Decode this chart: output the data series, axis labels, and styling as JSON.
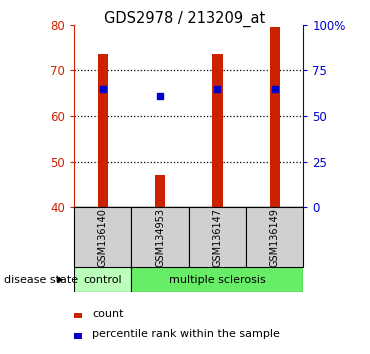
{
  "title": "GDS2978 / 213209_at",
  "samples": [
    "GSM136140",
    "GSM134953",
    "GSM136147",
    "GSM136149"
  ],
  "counts": [
    73.5,
    47.0,
    73.5,
    79.5
  ],
  "percentiles": [
    65.0,
    61.0,
    65.0,
    65.0
  ],
  "ylim_left": [
    40,
    80
  ],
  "ylim_right": [
    0,
    100
  ],
  "yticks_left": [
    40,
    50,
    60,
    70,
    80
  ],
  "yticks_right": [
    0,
    25,
    50,
    75,
    100
  ],
  "ytick_labels_right": [
    "0",
    "25",
    "50",
    "75",
    "100%"
  ],
  "bar_color": "#cc2200",
  "square_color": "#0000cc",
  "bar_width": 0.18,
  "group_label": "disease state",
  "ctrl_color": "#bbffbb",
  "ms_color": "#66ee66",
  "legend_items": [
    {
      "label": "count",
      "color": "#cc2200"
    },
    {
      "label": "percentile rank within the sample",
      "color": "#0000cc"
    }
  ],
  "grid_yticks": [
    50,
    60,
    70
  ],
  "sample_box_color": "#d0d0d0",
  "background_color": "#ffffff"
}
